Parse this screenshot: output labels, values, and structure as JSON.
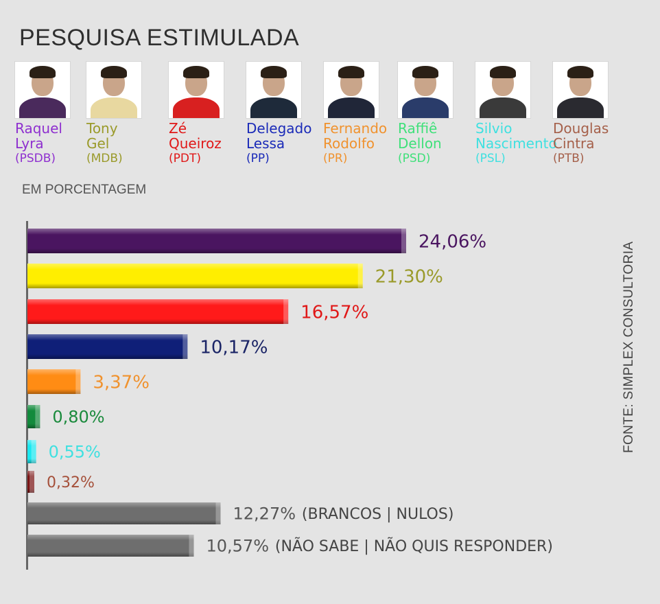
{
  "title": "PESQUISA ESTIMULADA",
  "subtitle": "EM PORCENTAGEM",
  "source": "FONTE: SIMPLEX CONSULTORIA",
  "candidates": [
    {
      "name_line1": "Raquel",
      "name_line2": "Lyra",
      "party": "(PSDB)",
      "color": "#8e2fcf",
      "body_color": "#4a2a5c"
    },
    {
      "name_line1": "Tony",
      "name_line2": "Gel",
      "party": "(MDB)",
      "color": "#9a9a2a",
      "body_color": "#e8d8a0"
    },
    {
      "name_line1": "Zé",
      "name_line2": "Queiroz",
      "party": "(PDT)",
      "color": "#e01818",
      "body_color": "#d82020"
    },
    {
      "name_line1": "Delegado",
      "name_line2": "Lessa",
      "party": "(PP)",
      "color": "#1a2ab8",
      "body_color": "#1e2a3a"
    },
    {
      "name_line1": "Fernando",
      "name_line2": "Rodolfo",
      "party": "(PR)",
      "color": "#f0922e",
      "body_color": "#202638"
    },
    {
      "name_line1": "Raffiê",
      "name_line2": "Dellon",
      "party": "(PSD)",
      "color": "#3fe07a",
      "body_color": "#2a3c6a"
    },
    {
      "name_line1": "Silvio",
      "name_line2": "Nascimento",
      "party": "(PSL)",
      "color": "#3fe0e0",
      "body_color": "#3a3a3a"
    },
    {
      "name_line1": "Douglas",
      "name_line2": "Cintra",
      "party": "(PTB)",
      "color": "#a5604a",
      "body_color": "#2a2a30"
    }
  ],
  "chart_data": {
    "type": "bar",
    "orientation": "horizontal",
    "title": "PESQUISA ESTIMULADA",
    "subtitle": "EM PORCENTAGEM",
    "grid": false,
    "series": [
      {
        "values": [
          24.06,
          21.3,
          16.57,
          10.17,
          3.37,
          0.8,
          0.55,
          0.32,
          12.27,
          10.57
        ],
        "labels": [
          "24,06%",
          "21,30%",
          "16,57%",
          "10,17%",
          "3,37%",
          "0,80%",
          "0,55%",
          "0,32%",
          "12,27%",
          "10,57%"
        ],
        "notes": [
          "",
          "",
          "",
          "",
          "",
          "",
          "",
          "",
          "(BRANCOS | NULOS)",
          "(NÃO SABE | NÃO QUIS RESPONDER)"
        ],
        "colors": [
          "#4a1560",
          "#ffee00",
          "#ff1a1a",
          "#0f1f78",
          "#ff8c14",
          "#128a3c",
          "#1ae8f0",
          "#7a1414",
          "#6e6e6e",
          "#6e6e6e"
        ],
        "label_colors": [
          "#4a1560",
          "#9a9a2a",
          "#e01818",
          "#1a2466",
          "#f0922e",
          "#1a8a3c",
          "#3fe0e0",
          "#a5503a",
          "#555555",
          "#555555"
        ]
      }
    ]
  }
}
